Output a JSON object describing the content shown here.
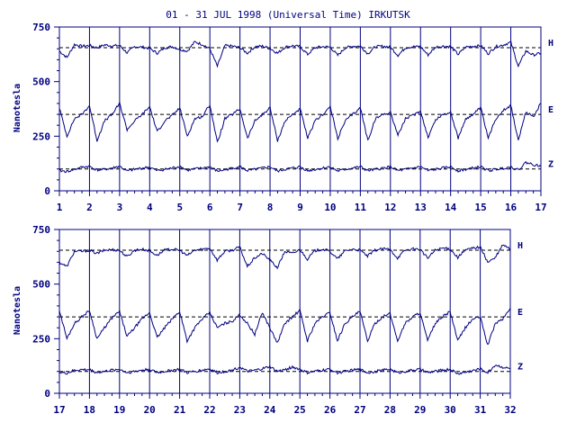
{
  "chart_data": {
    "type": "line",
    "title": "01 - 31 JUL 1998 (Universal Time) IRKUTSK",
    "ylabel": "Nanotesla",
    "line_color": "#000080",
    "background": "#ffffff",
    "panels": [
      {
        "xlim": [
          1,
          17
        ],
        "xticks": [
          "1",
          "2",
          "3",
          "4",
          "5",
          "6",
          "7",
          "8",
          "9",
          "10",
          "11",
          "12",
          "13",
          "14",
          "15",
          "16",
          "17"
        ],
        "ylim": [
          0,
          750
        ],
        "yticks": [
          "0",
          "250",
          "500",
          "750"
        ],
        "series": [
          {
            "name": "H",
            "baseline": 655,
            "x": [
              1,
              1.25,
              1.5,
              1.75,
              2,
              2.25,
              2.5,
              2.75,
              3,
              3.25,
              3.5,
              3.75,
              4,
              4.25,
              4.5,
              4.75,
              5,
              5.25,
              5.5,
              5.75,
              6,
              6.25,
              6.5,
              6.75,
              7,
              7.25,
              7.5,
              7.75,
              8,
              8.25,
              8.5,
              8.75,
              9,
              9.25,
              9.5,
              9.75,
              10,
              10.25,
              10.5,
              10.75,
              11,
              11.25,
              11.5,
              11.75,
              12,
              12.25,
              12.5,
              12.75,
              13,
              13.25,
              13.5,
              13.75,
              14,
              14.25,
              14.5,
              14.75,
              15,
              15.25,
              15.5,
              15.75,
              16,
              16.25,
              16.5,
              16.75,
              17
            ],
            "y": [
              640,
              610,
              670,
              662,
              665,
              655,
              668,
              664,
              665,
              632,
              660,
              658,
              652,
              630,
              655,
              660,
              648,
              640,
              682,
              670,
              650,
              570,
              665,
              662,
              655,
              630,
              660,
              662,
              652,
              630,
              658,
              664,
              660,
              625,
              655,
              660,
              658,
              620,
              655,
              662,
              662,
              628,
              660,
              662,
              658,
              620,
              655,
              660,
              660,
              622,
              658,
              662,
              660,
              625,
              658,
              662,
              664,
              628,
              660,
              668,
              680,
              570,
              640,
              622,
              630
            ]
          },
          {
            "name": "E",
            "baseline": 350,
            "x": [
              1,
              1.25,
              1.5,
              1.75,
              2,
              2.25,
              2.5,
              2.75,
              3,
              3.25,
              3.5,
              3.75,
              4,
              4.25,
              4.5,
              4.75,
              5,
              5.25,
              5.5,
              5.75,
              6,
              6.25,
              6.5,
              6.75,
              7,
              7.25,
              7.5,
              7.75,
              8,
              8.25,
              8.5,
              8.75,
              9,
              9.25,
              9.5,
              9.75,
              10,
              10.25,
              10.5,
              10.75,
              11,
              11.25,
              11.5,
              11.75,
              12,
              12.25,
              12.5,
              12.75,
              13,
              13.25,
              13.5,
              13.75,
              14,
              14.25,
              14.5,
              14.75,
              15,
              15.25,
              15.5,
              15.75,
              16,
              16.25,
              16.5,
              16.75,
              17
            ],
            "y": [
              380,
              250,
              330,
              350,
              390,
              230,
              320,
              350,
              400,
              280,
              320,
              350,
              385,
              270,
              320,
              345,
              380,
              250,
              330,
              340,
              395,
              220,
              330,
              350,
              375,
              240,
              320,
              350,
              380,
              230,
              320,
              350,
              375,
              240,
              320,
              350,
              385,
              240,
              320,
              350,
              380,
              230,
              330,
              350,
              360,
              255,
              330,
              345,
              365,
              245,
              325,
              350,
              360,
              240,
              330,
              350,
              380,
              240,
              330,
              370,
              390,
              230,
              360,
              340,
              400
            ]
          },
          {
            "name": "Z",
            "baseline": 100,
            "x": [
              1,
              1.25,
              1.5,
              1.75,
              2,
              2.25,
              2.5,
              2.75,
              3,
              3.25,
              3.5,
              3.75,
              4,
              4.25,
              4.5,
              4.75,
              5,
              5.25,
              5.5,
              5.75,
              6,
              6.25,
              6.5,
              6.75,
              7,
              7.25,
              7.5,
              7.75,
              8,
              8.25,
              8.5,
              8.75,
              9,
              9.25,
              9.5,
              9.75,
              10,
              10.25,
              10.5,
              10.75,
              11,
              11.25,
              11.5,
              11.75,
              12,
              12.25,
              12.5,
              12.75,
              13,
              13.25,
              13.5,
              13.75,
              14,
              14.25,
              14.5,
              14.75,
              15,
              15.25,
              15.5,
              15.75,
              16,
              16.25,
              16.5,
              16.75,
              17
            ],
            "y": [
              92,
              88,
              98,
              108,
              112,
              95,
              98,
              104,
              112,
              90,
              98,
              104,
              108,
              92,
              98,
              104,
              112,
              94,
              100,
              104,
              110,
              90,
              96,
              104,
              110,
              92,
              98,
              104,
              110,
              90,
              98,
              104,
              110,
              92,
              98,
              104,
              110,
              90,
              98,
              104,
              110,
              92,
              98,
              104,
              110,
              92,
              98,
              104,
              110,
              92,
              98,
              104,
              110,
              92,
              98,
              104,
              110,
              92,
              98,
              104,
              110,
              95,
              130,
              120,
              112
            ]
          }
        ],
        "dashed_levels": [
          655,
          350,
          100
        ]
      },
      {
        "xlim": [
          17,
          32
        ],
        "xticks": [
          "17",
          "18",
          "19",
          "20",
          "21",
          "22",
          "23",
          "24",
          "25",
          "26",
          "27",
          "28",
          "29",
          "30",
          "31",
          "32"
        ],
        "ylim": [
          0,
          750
        ],
        "yticks": [
          "0",
          "250",
          "500",
          "750"
        ],
        "series": [
          {
            "name": "H",
            "baseline": 655,
            "x": [
              17,
              17.25,
              17.5,
              17.75,
              18,
              18.25,
              18.5,
              18.75,
              19,
              19.25,
              19.5,
              19.75,
              20,
              20.25,
              20.5,
              20.75,
              21,
              21.25,
              21.5,
              21.75,
              22,
              22.25,
              22.5,
              22.75,
              23,
              23.25,
              23.5,
              23.75,
              24,
              24.25,
              24.5,
              24.75,
              25,
              25.25,
              25.5,
              25.75,
              26,
              26.25,
              26.5,
              26.75,
              27,
              27.25,
              27.5,
              27.75,
              28,
              28.25,
              28.5,
              28.75,
              29,
              29.25,
              29.5,
              29.75,
              30,
              30.25,
              30.5,
              30.75,
              31,
              31.25,
              31.5,
              31.75,
              32
            ],
            "y": [
              600,
              580,
              650,
              650,
              655,
              640,
              655,
              658,
              655,
              625,
              655,
              660,
              652,
              632,
              655,
              660,
              655,
              630,
              655,
              660,
              665,
              610,
              650,
              655,
              670,
              580,
              620,
              640,
              610,
              575,
              650,
              640,
              658,
              615,
              652,
              660,
              650,
              615,
              652,
              660,
              655,
              628,
              655,
              662,
              658,
              620,
              655,
              660,
              660,
              618,
              655,
              665,
              660,
              622,
              655,
              665,
              670,
              600,
              620,
              680,
              660
            ]
          },
          {
            "name": "E",
            "baseline": 350,
            "x": [
              17,
              17.25,
              17.5,
              17.75,
              18,
              18.25,
              18.5,
              18.75,
              19,
              19.25,
              19.5,
              19.75,
              20,
              20.25,
              20.5,
              20.75,
              21,
              21.25,
              21.5,
              21.75,
              22,
              22.25,
              22.5,
              22.75,
              23,
              23.25,
              23.5,
              23.75,
              24,
              24.25,
              24.5,
              24.75,
              25,
              25.25,
              25.5,
              25.75,
              26,
              26.25,
              26.5,
              26.75,
              27,
              27.25,
              27.5,
              27.75,
              28,
              28.25,
              28.5,
              28.75,
              29,
              29.25,
              29.5,
              29.75,
              30,
              30.25,
              30.5,
              30.75,
              31,
              31.25,
              31.5,
              31.75,
              32
            ],
            "y": [
              380,
              250,
              320,
              350,
              380,
              250,
              300,
              345,
              375,
              260,
              300,
              340,
              370,
              255,
              300,
              340,
              375,
              240,
              300,
              340,
              370,
              300,
              320,
              330,
              360,
              320,
              270,
              370,
              300,
              230,
              320,
              350,
              380,
              240,
              320,
              350,
              370,
              240,
              320,
              350,
              375,
              240,
              320,
              350,
              365,
              240,
              320,
              350,
              370,
              240,
              320,
              350,
              375,
              240,
              300,
              340,
              350,
              220,
              320,
              340,
              390
            ]
          },
          {
            "name": "Z",
            "baseline": 100,
            "x": [
              17,
              17.25,
              17.5,
              17.75,
              18,
              18.25,
              18.5,
              18.75,
              19,
              19.25,
              19.5,
              19.75,
              20,
              20.25,
              20.5,
              20.75,
              21,
              21.25,
              21.5,
              21.75,
              22,
              22.25,
              22.5,
              22.75,
              23,
              23.25,
              23.5,
              23.75,
              24,
              24.25,
              24.5,
              24.75,
              25,
              25.25,
              25.5,
              25.75,
              26,
              26.25,
              26.5,
              26.75,
              27,
              27.25,
              27.5,
              27.75,
              28,
              28.25,
              28.5,
              28.75,
              29,
              29.25,
              29.5,
              29.75,
              30,
              30.25,
              30.5,
              30.75,
              31,
              31.25,
              31.5,
              31.75,
              32
            ],
            "y": [
              95,
              92,
              105,
              108,
              108,
              95,
              100,
              106,
              110,
              94,
              100,
              106,
              110,
              94,
              100,
              106,
              110,
              94,
              100,
              106,
              112,
              94,
              100,
              106,
              120,
              100,
              105,
              112,
              122,
              100,
              108,
              120,
              110,
              94,
              100,
              106,
              110,
              94,
              100,
              106,
              110,
              94,
              100,
              106,
              110,
              94,
              100,
              106,
              110,
              94,
              100,
              106,
              110,
              90,
              96,
              104,
              112,
              95,
              130,
              120,
              112
            ]
          }
        ],
        "dashed_levels": [
          655,
          350,
          100
        ]
      }
    ]
  }
}
